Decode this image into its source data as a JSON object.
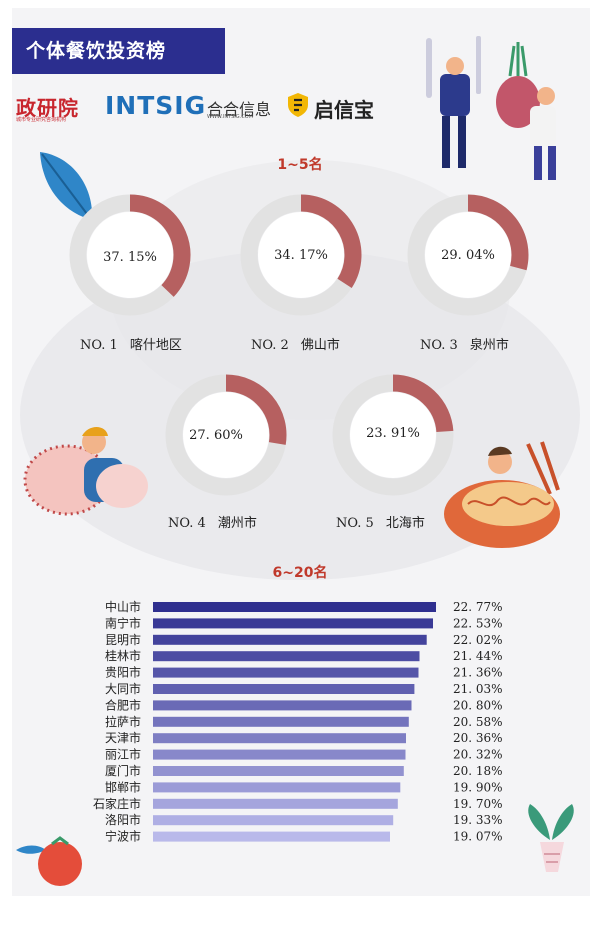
{
  "header": {
    "title": "个体餐饮投资榜"
  },
  "logos": {
    "zhengyan": "政研院",
    "zhengyan_sub": "城市专业研究咨询机构",
    "intsig": "INTSIG",
    "hehe": "合合信息",
    "hehe_sub": "WWW.INTSIG.COM",
    "qixinbao": "启信宝"
  },
  "sections": {
    "top5": "1~5名",
    "rest": "6~20名"
  },
  "colors": {
    "accent": "#b66060",
    "ring": "#e2e2e2",
    "bar_dark": "#2f2f8f",
    "bar_light": "#b9b9ea",
    "title_bg": "#2b2e8f"
  },
  "chart_data": [
    {
      "type": "pie",
      "title": "1~5名",
      "items": [
        {
          "rank": "NO. 1",
          "city": "喀什地区",
          "value": 37.15,
          "label": "37. 15%"
        },
        {
          "rank": "NO. 2",
          "city": "佛山市",
          "value": 34.17,
          "label": "34. 17%"
        },
        {
          "rank": "NO. 3",
          "city": "泉州市",
          "value": 29.04,
          "label": "29. 04%"
        },
        {
          "rank": "NO. 4",
          "city": "潮州市",
          "value": 27.6,
          "label": "27. 60%"
        },
        {
          "rank": "NO. 5",
          "city": "北海市",
          "value": 23.91,
          "label": "23. 91%"
        }
      ]
    },
    {
      "type": "bar",
      "orientation": "horizontal",
      "title": "6~20名",
      "categories": [
        "中山市",
        "南宁市",
        "昆明市",
        "桂林市",
        "贵阳市",
        "大同市",
        "合肥市",
        "拉萨市",
        "天津市",
        "丽江市",
        "厦门市",
        "邯郸市",
        "石家庄市",
        "洛阳市",
        "宁波市"
      ],
      "values": [
        22.77,
        22.53,
        22.02,
        21.44,
        21.36,
        21.03,
        20.8,
        20.58,
        20.36,
        20.32,
        20.18,
        19.9,
        19.7,
        19.33,
        19.07
      ],
      "labels": [
        "22. 77%",
        "22. 53%",
        "22. 02%",
        "21. 44%",
        "21. 36%",
        "21. 03%",
        "20. 80%",
        "20. 58%",
        "20. 36%",
        "20. 32%",
        "20. 18%",
        "19. 90%",
        "19. 70%",
        "19. 33%",
        "19. 07%"
      ],
      "xlim": [
        0,
        22.77
      ],
      "grid": false
    }
  ]
}
